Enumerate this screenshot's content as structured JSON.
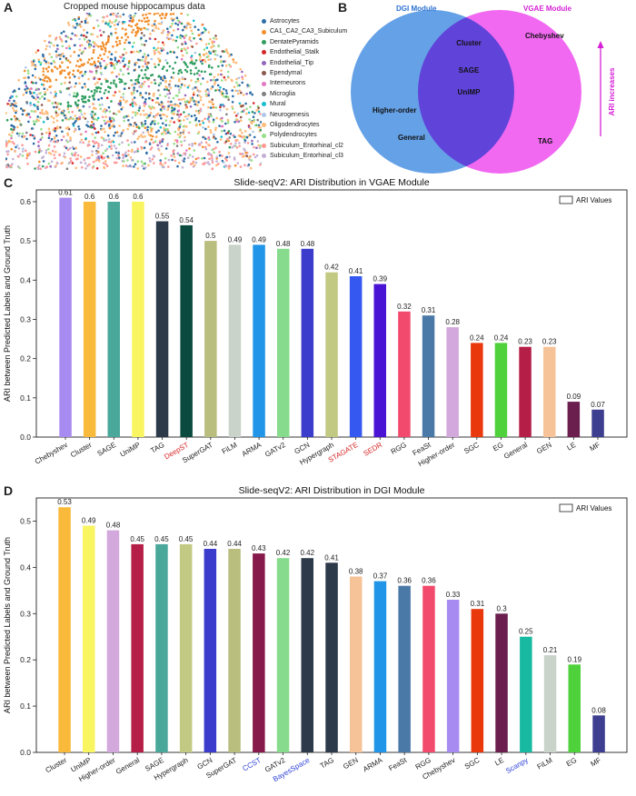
{
  "panels": {
    "A": "A",
    "B": "B",
    "C": "C",
    "D": "D"
  },
  "panelA": {
    "title": "Cropped mouse hippocampus data",
    "legend": [
      {
        "label": "Astrocytes",
        "color": "#2e6fa7"
      },
      {
        "label": "CA1_CA2_CA3_Subiculum",
        "color": "#f28e2b"
      },
      {
        "label": "DentatePyramids",
        "color": "#2f9e5f"
      },
      {
        "label": "Endothelial_Stalk",
        "color": "#d62728"
      },
      {
        "label": "Endothelial_Tip",
        "color": "#9467bd"
      },
      {
        "label": "Ependymal",
        "color": "#8c564b"
      },
      {
        "label": "Interneurons",
        "color": "#e377c2"
      },
      {
        "label": "Microglia",
        "color": "#7f7f7f"
      },
      {
        "label": "Mural",
        "color": "#17becf"
      },
      {
        "label": "Neurogenesis",
        "color": "#aec7e8"
      },
      {
        "label": "Oligodendrocytes",
        "color": "#ffbb78"
      },
      {
        "label": "Polydendrocytes",
        "color": "#98df8a"
      },
      {
        "label": "Subiculum_Entorhinal_cl2",
        "color": "#ff9896"
      },
      {
        "label": "Subiculum_Entorhinal_cl3",
        "color": "#c5b0d5"
      }
    ]
  },
  "panelB": {
    "dgi_label": "DGI Module",
    "vgae_label": "VGAE Module",
    "dgi_color": "#4a90e2",
    "vgae_color": "#ee44ee",
    "left_items": [
      "Higher-order",
      "General"
    ],
    "center_items": [
      "Cluster",
      "SAGE",
      "UniMP"
    ],
    "right_items": [
      "Chebyshev",
      "TAG"
    ],
    "arrow_label": "ARI increases"
  },
  "chart_data": [
    {
      "type": "bar",
      "title": "Slide-seqV2: ARI Distribution  in VGAE Module",
      "ylabel": "ARI between Predicted Labels and Ground Truth",
      "legend": "ARI Values",
      "ylim": [
        0,
        0.63
      ],
      "yticks": [
        0.0,
        0.1,
        0.2,
        0.3,
        0.4,
        0.5,
        0.6
      ],
      "categories": [
        "Chebyshev",
        "Cluster",
        "SAGE",
        "UniMP",
        "TAG",
        "DeepST",
        "SuperGAT",
        "FiLM",
        "ARMA",
        "GATv2",
        "GCN",
        "Hypergraph",
        "STAGATE",
        "SEDR",
        "RGG",
        "FeaSt",
        "Higher-order",
        "SGC",
        "EG",
        "General",
        "GEN",
        "LE",
        "MF"
      ],
      "values": [
        0.61,
        0.6,
        0.6,
        0.6,
        0.55,
        0.54,
        0.5,
        0.49,
        0.49,
        0.48,
        0.48,
        0.42,
        0.41,
        0.39,
        0.32,
        0.31,
        0.28,
        0.24,
        0.24,
        0.23,
        0.23,
        0.09,
        0.07
      ],
      "value_labels": [
        "0.61",
        "0.6",
        "0.6",
        "0.6",
        "0.55",
        "0.54",
        "0.5",
        "0.49",
        "0.49",
        "0.48",
        "0.48",
        "0.42",
        "0.41",
        "0.39",
        "0.32",
        "0.31",
        "0.28",
        "0.24",
        "0.24",
        "0.23",
        "0.23",
        "0.09",
        "0.07"
      ],
      "colors": [
        "#a88bf0",
        "#f9b93a",
        "#4aa89a",
        "#f8f560",
        "#2d3a4a",
        "#0b4b3f",
        "#b9be7e",
        "#c9d3c9",
        "#2196e8",
        "#86dc8c",
        "#3c3ccc",
        "#c2c982",
        "#3458f0",
        "#4a14d4",
        "#f24a6c",
        "#4b79a7",
        "#d3a8dc",
        "#e8380c",
        "#4ed13a",
        "#b51e46",
        "#f6c297",
        "#6a1f4e",
        "#3e3e90"
      ],
      "label_colors": [
        "#222",
        "#222",
        "#222",
        "#222",
        "#222",
        "#d62728",
        "#222",
        "#222",
        "#222",
        "#222",
        "#222",
        "#222",
        "#d62728",
        "#d62728",
        "#222",
        "#222",
        "#222",
        "#222",
        "#222",
        "#222",
        "#222",
        "#222",
        "#222"
      ]
    },
    {
      "type": "bar",
      "title": "Slide-seqV2: ARI Distribution  in DGI Module",
      "ylabel": "ARI between Predicted Labels and Ground Truth",
      "legend": "ARI Values",
      "ylim": [
        0,
        0.55
      ],
      "yticks": [
        0.0,
        0.1,
        0.2,
        0.3,
        0.4,
        0.5
      ],
      "categories": [
        "Cluster",
        "UniMP",
        "Higher-order",
        "General",
        "SAGE",
        "Hypergraph",
        "GCN",
        "SuperGAT",
        "CCST",
        "GATv2",
        "BayesSpace",
        "TAG",
        "GEN",
        "ARMA",
        "FeaSt",
        "RGG",
        "Chebyshev",
        "SGC",
        "LE",
        "Scanpy",
        "FiLM",
        "EG",
        "MF"
      ],
      "values": [
        0.53,
        0.49,
        0.48,
        0.45,
        0.45,
        0.45,
        0.44,
        0.44,
        0.43,
        0.42,
        0.42,
        0.41,
        0.38,
        0.37,
        0.36,
        0.36,
        0.33,
        0.31,
        0.3,
        0.25,
        0.21,
        0.19,
        0.08
      ],
      "value_labels": [
        "0.53",
        "0.49",
        "0.48",
        "0.45",
        "0.45",
        "0.45",
        "0.44",
        "0.44",
        "0.43",
        "0.42",
        "0.42",
        "0.41",
        "0.38",
        "0.37",
        "0.36",
        "0.36",
        "0.33",
        "0.31",
        "0.3",
        "0.25",
        "0.21",
        "0.19",
        "0.08"
      ],
      "colors": [
        "#f9b93a",
        "#f8f560",
        "#d3a8dc",
        "#b51e46",
        "#4aa89a",
        "#c2c982",
        "#3c3ccc",
        "#b9be7e",
        "#861a4a",
        "#86dc8c",
        "#2d3a4a",
        "#2d3a4a",
        "#f6c297",
        "#2196e8",
        "#4b79a7",
        "#f24a6c",
        "#a88bf0",
        "#e8380c",
        "#6a1f4e",
        "#17b9a0",
        "#c9d3c9",
        "#4ed13a",
        "#3e3e90"
      ],
      "label_colors": [
        "#222",
        "#222",
        "#222",
        "#222",
        "#222",
        "#222",
        "#222",
        "#222",
        "#2b3fd6",
        "#222",
        "#2b3fd6",
        "#222",
        "#222",
        "#222",
        "#222",
        "#222",
        "#222",
        "#222",
        "#222",
        "#2b3fd6",
        "#222",
        "#222",
        "#222"
      ]
    }
  ]
}
